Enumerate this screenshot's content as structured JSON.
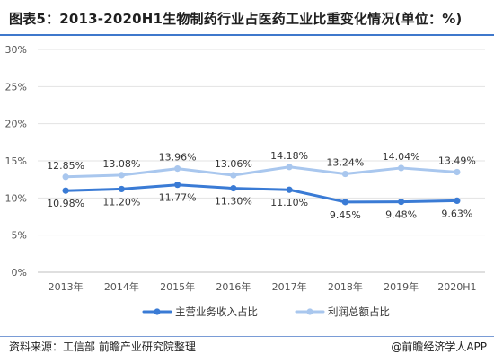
{
  "title": "图表5：2013-2020H1生物制药行业占医药工业比重变化情况(单位：%)",
  "source": "资料来源：工信部 前瞻产业研究院整理",
  "brand": "@前瞻经济学人APP",
  "colors": {
    "series1": "#3a7bd5",
    "series2": "#a9c7ee",
    "accent": "#3f78cc",
    "grid": "#e3e3e3"
  },
  "chart_data": {
    "type": "line",
    "categories": [
      "2013年",
      "2014年",
      "2015年",
      "2016年",
      "2017年",
      "2018年",
      "2019年",
      "2020H1"
    ],
    "yticks": [
      "0%",
      "5%",
      "10%",
      "15%",
      "20%",
      "25%",
      "30%"
    ],
    "ylim": [
      0,
      30
    ],
    "grid": true,
    "legend_position": "bottom",
    "series": [
      {
        "name": "主营业务收入占比",
        "values": [
          10.98,
          11.2,
          11.77,
          11.3,
          11.1,
          9.45,
          9.48,
          9.63
        ],
        "labels": [
          "10.98%",
          "11.20%",
          "11.77%",
          "11.30%",
          "11.10%",
          "9.45%",
          "9.48%",
          "9.63%"
        ],
        "label_position": "below"
      },
      {
        "name": "利润总额占比",
        "values": [
          12.85,
          13.08,
          13.96,
          13.06,
          14.18,
          13.24,
          14.04,
          13.49
        ],
        "labels": [
          "12.85%",
          "13.08%",
          "13.96%",
          "13.06%",
          "14.18%",
          "13.24%",
          "14.04%",
          "13.49%"
        ],
        "label_position": "above"
      }
    ]
  }
}
